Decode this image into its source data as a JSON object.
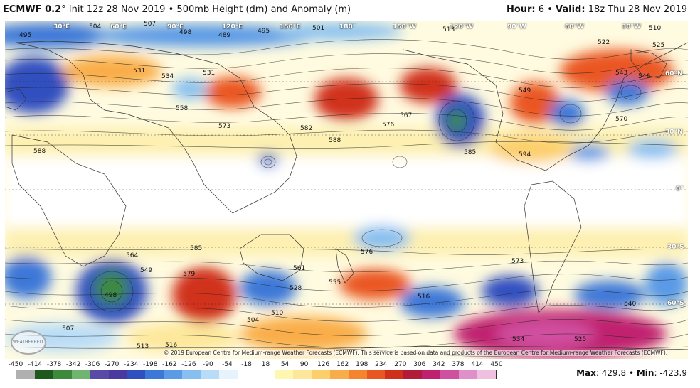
{
  "header": {
    "model": "ECMWF 0.2",
    "degree": "°",
    "init": "Init 12z 28 Nov 2019",
    "bullet": "•",
    "field": "500mb Height (dm) and Anomaly (m)",
    "hour_label": "Hour:",
    "hour_value": "6",
    "valid_label": "Valid:",
    "valid_value": "18z Thu 28 Nov 2019"
  },
  "map": {
    "lon_labels": [
      "30°E",
      "60°E",
      "90°E",
      "120°E",
      "150°E",
      "180°",
      "150°W",
      "120°W",
      "90°W",
      "60°W",
      "30°W"
    ],
    "lat_labels": [
      "60°N",
      "30°N",
      "0°",
      "30°S",
      "60°S"
    ],
    "contour_labels": [
      "495",
      "504",
      "507",
      "498",
      "489",
      "495",
      "501",
      "513",
      "510",
      "522",
      "525",
      "531",
      "543",
      "546",
      "534",
      "531",
      "549",
      "558",
      "573",
      "582",
      "576",
      "567",
      "588",
      "585",
      "594",
      "570",
      "564",
      "549",
      "528",
      "516",
      "555",
      "561",
      "579",
      "585",
      "573",
      "576",
      "540",
      "504",
      "510",
      "507",
      "513",
      "516",
      "525",
      "534",
      "498",
      "588"
    ],
    "credit": "© 2019 European Centre for Medium-range Weather Forecasts (ECMWF). This service is based on data and products of the European Centre for Medium-range Weather Forecasts (ECMWF).",
    "logo_text": "WEATHERBELL"
  },
  "colorbar": {
    "ticks": [
      "-450",
      "-414",
      "-378",
      "-342",
      "-306",
      "-270",
      "-234",
      "-198",
      "-162",
      "-126",
      "-90",
      "-54",
      "-18",
      "18",
      "54",
      "90",
      "126",
      "162",
      "198",
      "234",
      "270",
      "306",
      "342",
      "378",
      "414",
      "450"
    ],
    "colors": [
      "#b0b0b0",
      "#1e5a1e",
      "#3d8a3d",
      "#6fb56f",
      "#5a4aa8",
      "#4a3aa0",
      "#3050c0",
      "#3c78d8",
      "#5a9ae6",
      "#86bff0",
      "#b8dcf7",
      "#e6f3fc",
      "#ffffff",
      "#ffffff",
      "#fff6b0",
      "#fde79a",
      "#fccf6a",
      "#f9ad4a",
      "#f5842e",
      "#ea5622",
      "#d0301a",
      "#b01c3a",
      "#c02070",
      "#d050a0",
      "#e090c8",
      "#f0c0e0"
    ]
  },
  "extremes": {
    "max_label": "Max",
    "max_value": "429.8",
    "min_label": "Min",
    "min_value": "-423.9"
  }
}
